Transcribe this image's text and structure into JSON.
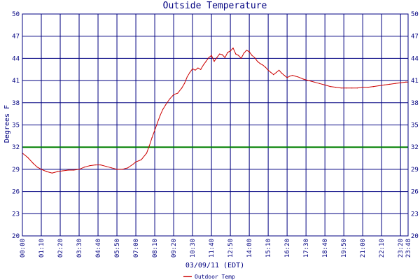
{
  "chart_data": {
    "type": "line",
    "title": "Outside Temperature",
    "xlabel": "03/09/11 (EDT)",
    "ylabel": "Degrees F",
    "ylim": [
      20,
      50
    ],
    "xlim": [
      0,
      1428
    ],
    "y_ticks": [
      20,
      23,
      26,
      29,
      32,
      35,
      38,
      41,
      44,
      47,
      50
    ],
    "x_ticks": [
      {
        "label": "00:00",
        "minutes": 0
      },
      {
        "label": "01:10",
        "minutes": 70
      },
      {
        "label": "02:20",
        "minutes": 140
      },
      {
        "label": "03:30",
        "minutes": 210
      },
      {
        "label": "04:40",
        "minutes": 280
      },
      {
        "label": "05:50",
        "minutes": 350
      },
      {
        "label": "07:00",
        "minutes": 420
      },
      {
        "label": "08:10",
        "minutes": 490
      },
      {
        "label": "09:20",
        "minutes": 560
      },
      {
        "label": "10:30",
        "minutes": 630
      },
      {
        "label": "11:40",
        "minutes": 700
      },
      {
        "label": "12:50",
        "minutes": 770
      },
      {
        "label": "14:00",
        "minutes": 840
      },
      {
        "label": "15:10",
        "minutes": 910
      },
      {
        "label": "16:20",
        "minutes": 980
      },
      {
        "label": "17:30",
        "minutes": 1050
      },
      {
        "label": "18:40",
        "minutes": 1120
      },
      {
        "label": "19:50",
        "minutes": 1190
      },
      {
        "label": "21:00",
        "minutes": 1260
      },
      {
        "label": "22:10",
        "minutes": 1330
      },
      {
        "label": "23:20",
        "minutes": 1400
      },
      {
        "label": "23:48",
        "minutes": 1428
      }
    ],
    "grid": true,
    "legend_position": "bottom-center",
    "reference_line": {
      "y": 32,
      "color": "#008000"
    },
    "series": [
      {
        "name": "Outdoor Temp",
        "color": "#cc0000",
        "x": [
          0,
          20,
          40,
          55,
          70,
          90,
          110,
          130,
          150,
          170,
          190,
          210,
          230,
          250,
          270,
          290,
          310,
          330,
          350,
          370,
          390,
          410,
          420,
          440,
          460,
          470,
          480,
          490,
          500,
          510,
          520,
          530,
          545,
          560,
          575,
          590,
          600,
          610,
          620,
          630,
          640,
          650,
          660,
          670,
          680,
          690,
          700,
          710,
          720,
          730,
          740,
          750,
          760,
          770,
          780,
          790,
          800,
          810,
          820,
          830,
          840,
          850,
          860,
          870,
          880,
          890,
          900,
          910,
          920,
          930,
          940,
          950,
          960,
          970,
          980,
          990,
          1000,
          1010,
          1020,
          1040,
          1060,
          1080,
          1100,
          1120,
          1140,
          1160,
          1180,
          1200,
          1220,
          1240,
          1260,
          1280,
          1300,
          1320,
          1340,
          1360,
          1380,
          1400,
          1420,
          1428
        ],
        "y": [
          31.2,
          30.6,
          29.8,
          29.3,
          29.0,
          28.7,
          28.5,
          28.7,
          28.8,
          28.9,
          28.9,
          29.0,
          29.3,
          29.5,
          29.6,
          29.6,
          29.4,
          29.2,
          29.0,
          29.0,
          29.2,
          29.7,
          30.0,
          30.3,
          31.2,
          32.2,
          33.3,
          34.3,
          35.3,
          36.3,
          37.1,
          37.7,
          38.5,
          39.1,
          39.3,
          40.0,
          40.6,
          41.5,
          42.1,
          42.6,
          42.4,
          42.7,
          42.5,
          43.1,
          43.6,
          44.1,
          44.4,
          43.6,
          44.1,
          44.6,
          44.5,
          44.1,
          44.8,
          45.0,
          45.4,
          44.6,
          44.4,
          44.0,
          44.7,
          45.1,
          44.9,
          44.4,
          44.1,
          43.6,
          43.3,
          43.1,
          42.8,
          42.4,
          42.1,
          41.8,
          42.1,
          42.4,
          42.0,
          41.7,
          41.4,
          41.6,
          41.7,
          41.6,
          41.5,
          41.2,
          41.0,
          40.8,
          40.6,
          40.4,
          40.2,
          40.1,
          40.0,
          40.0,
          40.0,
          40.0,
          40.1,
          40.1,
          40.2,
          40.3,
          40.4,
          40.5,
          40.6,
          40.7,
          40.8,
          40.8
        ]
      }
    ]
  }
}
